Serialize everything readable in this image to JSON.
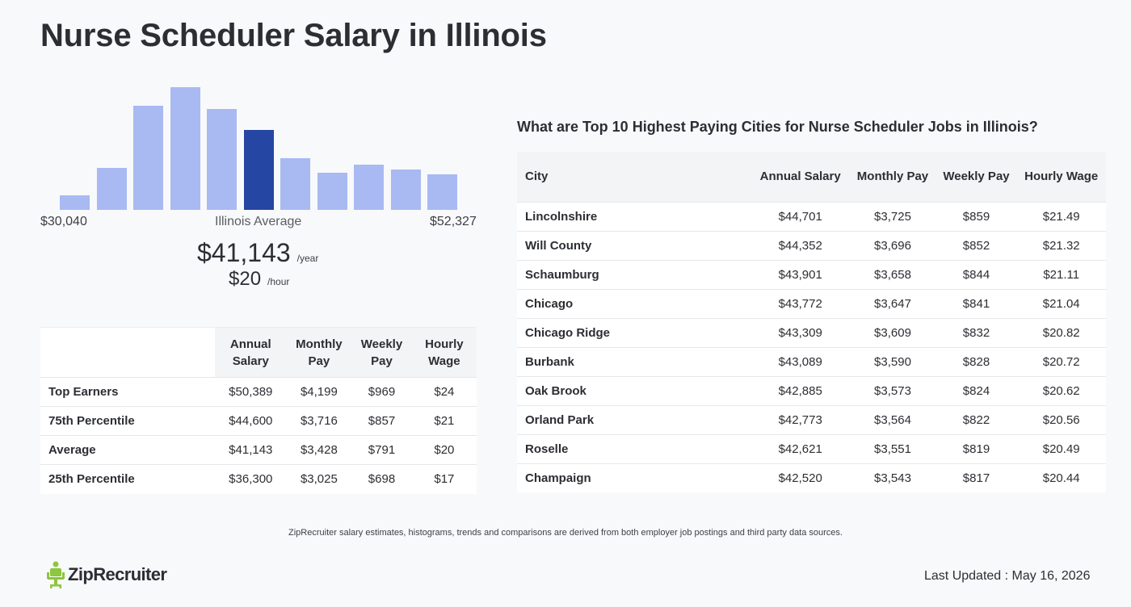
{
  "title": "Nurse Scheduler Salary in Illinois",
  "histogram": {
    "range_min": "$30,040",
    "range_max": "$52,327",
    "avg_label": "Illinois Average",
    "bar_heights_relative": [
      0.12,
      0.34,
      0.85,
      1.0,
      0.82,
      0.65,
      0.42,
      0.3,
      0.37,
      0.33,
      0.29
    ],
    "highlight_index": 5,
    "bar_color": "#a9b9f2",
    "highlight_color": "#2546a3"
  },
  "average": {
    "yearly": "$41,143",
    "yearly_unit": "/year",
    "hourly": "$20",
    "hourly_unit": "/hour"
  },
  "percentile_table": {
    "headers": [
      "Annual Salary",
      "Monthly Pay",
      "Weekly Pay",
      "Hourly Wage"
    ],
    "rows": [
      {
        "label": "Top Earners",
        "annual": "$50,389",
        "monthly": "$4,199",
        "weekly": "$969",
        "hourly": "$24"
      },
      {
        "label": "75th Percentile",
        "annual": "$44,600",
        "monthly": "$3,716",
        "weekly": "$857",
        "hourly": "$21"
      },
      {
        "label": "Average",
        "annual": "$41,143",
        "monthly": "$3,428",
        "weekly": "$791",
        "hourly": "$20"
      },
      {
        "label": "25th Percentile",
        "annual": "$36,300",
        "monthly": "$3,025",
        "weekly": "$698",
        "hourly": "$17"
      }
    ]
  },
  "cities": {
    "heading": "What are Top 10 Highest Paying Cities for Nurse Scheduler Jobs in Illinois?",
    "headers": [
      "City",
      "Annual Salary",
      "Monthly Pay",
      "Weekly Pay",
      "Hourly Wage"
    ],
    "rows": [
      {
        "city": "Lincolnshire",
        "annual": "$44,701",
        "monthly": "$3,725",
        "weekly": "$859",
        "hourly": "$21.49"
      },
      {
        "city": "Will County",
        "annual": "$44,352",
        "monthly": "$3,696",
        "weekly": "$852",
        "hourly": "$21.32"
      },
      {
        "city": "Schaumburg",
        "annual": "$43,901",
        "monthly": "$3,658",
        "weekly": "$844",
        "hourly": "$21.11"
      },
      {
        "city": "Chicago",
        "annual": "$43,772",
        "monthly": "$3,647",
        "weekly": "$841",
        "hourly": "$21.04"
      },
      {
        "city": "Chicago Ridge",
        "annual": "$43,309",
        "monthly": "$3,609",
        "weekly": "$832",
        "hourly": "$20.82"
      },
      {
        "city": "Burbank",
        "annual": "$43,089",
        "monthly": "$3,590",
        "weekly": "$828",
        "hourly": "$20.72"
      },
      {
        "city": "Oak Brook",
        "annual": "$42,885",
        "monthly": "$3,573",
        "weekly": "$824",
        "hourly": "$20.62"
      },
      {
        "city": "Orland Park",
        "annual": "$42,773",
        "monthly": "$3,564",
        "weekly": "$822",
        "hourly": "$20.56"
      },
      {
        "city": "Roselle",
        "annual": "$42,621",
        "monthly": "$3,551",
        "weekly": "$819",
        "hourly": "$20.49"
      },
      {
        "city": "Champaign",
        "annual": "$42,520",
        "monthly": "$3,543",
        "weekly": "$817",
        "hourly": "$20.44"
      }
    ]
  },
  "disclaimer": "ZipRecruiter salary estimates, histograms, trends and comparisons are derived from both employer job postings and third party data sources.",
  "logo": {
    "text": "ZipRecruiter",
    "icon": "chair-person-icon",
    "icon_color": "#8dc63f"
  },
  "last_updated": "Last Updated : May 16, 2026"
}
